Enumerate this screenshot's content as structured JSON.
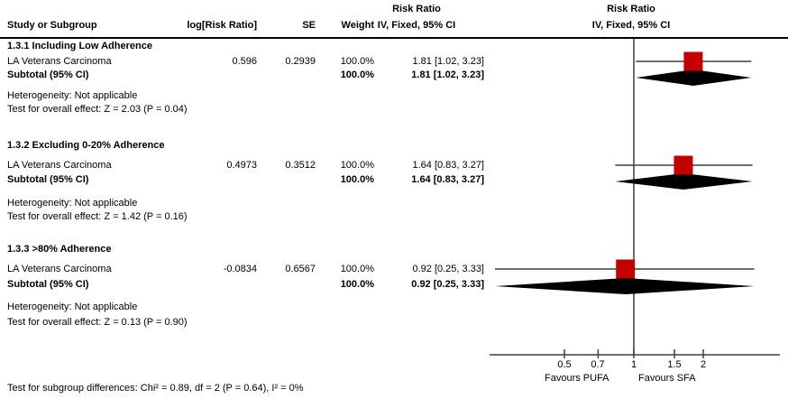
{
  "colors": {
    "marker": "#c40000",
    "diamond": "#000000",
    "plot_line": "#3f3f3f"
  },
  "header": {
    "col_study": "Study or Subgroup",
    "col_log_rr": "log[Risk Ratio]",
    "col_se": "SE",
    "col_weight": "Weight",
    "col_effect_line1": "Risk Ratio",
    "col_effect_line2": "IV, Fixed, 95% CI",
    "plot_line1": "Risk Ratio",
    "plot_line2": "IV, Fixed, 95% CI"
  },
  "sections": [
    {
      "heading": "1.3.1 Including Low Adherence",
      "study": {
        "name": "LA Veterans Carcinoma",
        "log_rr": "0.596",
        "se": "0.2939",
        "weight": "100.0%",
        "effect": "1.81 [1.02, 3.23]"
      },
      "subtotal": {
        "label": "Subtotal (95% CI)",
        "weight": "100.0%",
        "effect": "1.81 [1.02, 3.23]"
      },
      "heterogeneity": "Heterogeneity: Not applicable",
      "overall_effect": "Test for overall effect: Z = 2.03 (P = 0.04)"
    },
    {
      "heading": "1.3.2 Excluding 0-20% Adherence",
      "study": {
        "name": "LA Veterans Carcinoma",
        "log_rr": "0.4973",
        "se": "0.3512",
        "weight": "100.0%",
        "effect": "1.64 [0.83, 3.27]"
      },
      "subtotal": {
        "label": "Subtotal (95% CI)",
        "weight": "100.0%",
        "effect": "1.64 [0.83, 3.27]"
      },
      "heterogeneity": "Heterogeneity: Not applicable",
      "overall_effect": "Test for overall effect: Z = 1.42 (P = 0.16)"
    },
    {
      "heading": "1.3.3 >80% Adherence",
      "study": {
        "name": "LA Veterans Carcinoma",
        "log_rr": "-0.0834",
        "se": "0.6567",
        "weight": "100.0%",
        "effect": "0.92 [0.25, 3.33]"
      },
      "subtotal": {
        "label": "Subtotal (95% CI)",
        "weight": "100.0%",
        "effect": "0.92 [0.25, 3.33]"
      },
      "heterogeneity": "Heterogeneity: Not applicable",
      "overall_effect": "Test for overall effect: Z = 0.13 (P = 0.90)"
    }
  ],
  "footer": "Test for subgroup differences: Chi² = 0.89, df = 2 (P = 0.64), I² = 0%",
  "chart_data": {
    "type": "forest",
    "scale": "log10",
    "effect_measure": "Risk Ratio",
    "method": "IV, Fixed, 95% CI",
    "axis": {
      "ticks": [
        0.5,
        0.7,
        1,
        1.5,
        2
      ],
      "tick_labels": [
        "0.5",
        "0.7",
        "1",
        "1.5",
        "2"
      ],
      "min": 0.24,
      "max": 4.3,
      "label_left": "Favours PUFA",
      "label_right": "Favours SFA"
    },
    "rows": [
      {
        "section": "1.3.1 Including Low Adherence",
        "study": "LA Veterans Carcinoma",
        "estimate": 1.81,
        "ci_low": 1.02,
        "ci_high": 3.23,
        "weight_pct": 100.0,
        "subtotal": {
          "estimate": 1.81,
          "ci_low": 1.02,
          "ci_high": 3.23
        }
      },
      {
        "section": "1.3.2 Excluding 0-20% Adherence",
        "study": "LA Veterans Carcinoma",
        "estimate": 1.64,
        "ci_low": 0.83,
        "ci_high": 3.27,
        "weight_pct": 100.0,
        "subtotal": {
          "estimate": 1.64,
          "ci_low": 0.83,
          "ci_high": 3.27
        }
      },
      {
        "section": "1.3.3 >80% Adherence",
        "study": "LA Veterans Carcinoma",
        "estimate": 0.92,
        "ci_low": 0.25,
        "ci_high": 3.33,
        "weight_pct": 100.0,
        "subtotal": {
          "estimate": 0.92,
          "ci_low": 0.25,
          "ci_high": 3.33
        }
      }
    ]
  }
}
